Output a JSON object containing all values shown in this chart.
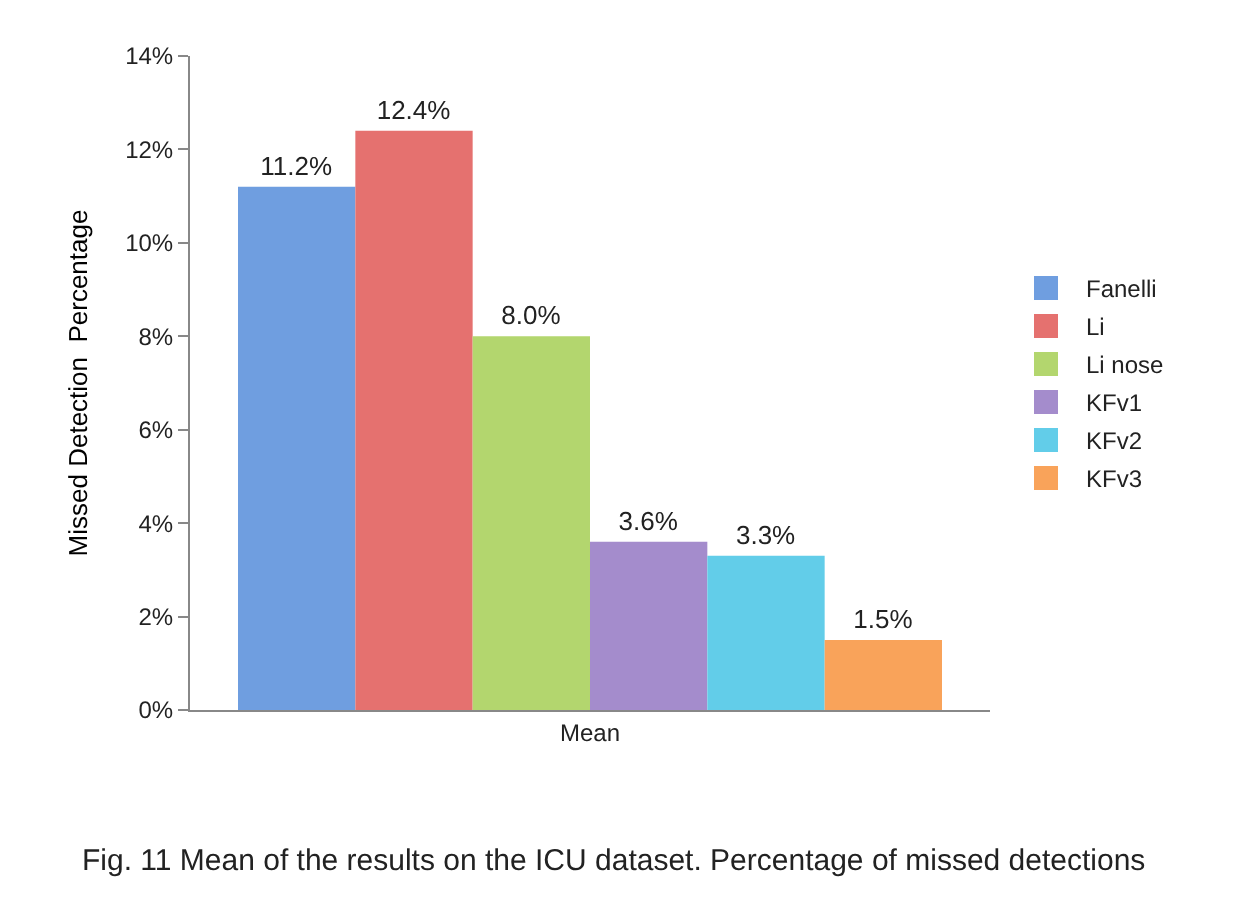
{
  "chart_data": {
    "type": "bar",
    "ylabel": "Missed Detection  Percentage",
    "categories": [
      "Mean"
    ],
    "series": [
      {
        "name": "Fanelli",
        "color": "#6f9ee0",
        "values": [
          11.2
        ],
        "value_labels": [
          "11.2%"
        ]
      },
      {
        "name": "Li",
        "color": "#e5716f",
        "values": [
          12.4
        ],
        "value_labels": [
          "12.4%"
        ]
      },
      {
        "name": "Li nose",
        "color": "#b3d66e",
        "values": [
          8.0
        ],
        "value_labels": [
          "8.0%"
        ]
      },
      {
        "name": "KFv1",
        "color": "#a48ccc",
        "values": [
          3.6
        ],
        "value_labels": [
          "3.6%"
        ]
      },
      {
        "name": "KFv2",
        "color": "#62cde9",
        "values": [
          3.3
        ],
        "value_labels": [
          "3.3%"
        ]
      },
      {
        "name": "KFv3",
        "color": "#f9a35a",
        "values": [
          1.5
        ],
        "value_labels": [
          "1.5%"
        ]
      }
    ],
    "ylim": [
      0,
      14
    ],
    "yticks": [
      {
        "value": 0,
        "label": "0%"
      },
      {
        "value": 2,
        "label": "2%"
      },
      {
        "value": 4,
        "label": "4%"
      },
      {
        "value": 6,
        "label": "6%"
      },
      {
        "value": 8,
        "label": "8%"
      },
      {
        "value": 10,
        "label": "10%"
      },
      {
        "value": 12,
        "label": "12%"
      },
      {
        "value": 14,
        "label": "14%"
      }
    ],
    "legend": "right",
    "annotations": [
      "Fig. 11 Mean of the results on the ICU dataset. Percentage of missed detections"
    ]
  }
}
